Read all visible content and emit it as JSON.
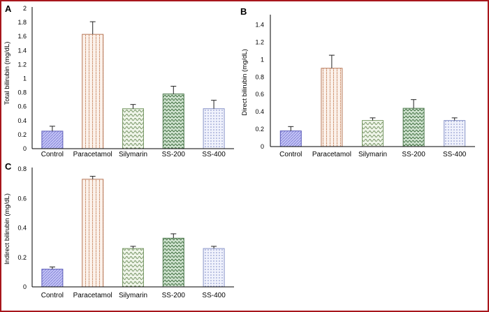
{
  "chart_data": [
    {
      "panel": "A",
      "type": "bar",
      "ylabel": "Total bilirubin (mg/dL)",
      "categories": [
        "Control",
        "Paracetamol",
        "Silymarin",
        "SS-200",
        "SS-400"
      ],
      "values": [
        0.25,
        1.63,
        0.57,
        0.78,
        0.57
      ],
      "errors": [
        0.07,
        0.18,
        0.06,
        0.11,
        0.12
      ],
      "yticks": [
        "0",
        "0.2",
        "0.4",
        "0.6",
        "0.8",
        "1",
        "1.2",
        "1.4",
        "1.6",
        "1.8",
        "2"
      ],
      "ylim": [
        0,
        2
      ]
    },
    {
      "panel": "B",
      "type": "bar",
      "ylabel": "Direct bilirubin (mg/dL)",
      "categories": [
        "Control",
        "Paracetamol",
        "Silymarin",
        "SS-200",
        "SS-400"
      ],
      "values": [
        0.18,
        0.9,
        0.3,
        0.44,
        0.3
      ],
      "errors": [
        0.05,
        0.15,
        0.03,
        0.1,
        0.03
      ],
      "yticks": [
        "0",
        "0.2",
        "0.4",
        "0.6",
        "0.8",
        "1",
        "1.2",
        "1.4"
      ],
      "ylim": [
        0,
        1.5
      ]
    },
    {
      "panel": "C",
      "type": "bar",
      "ylabel": "Indirect bilirubin (mg/dL)",
      "categories": [
        "Control",
        "Paracetamol",
        "Silymarin",
        "SS-200",
        "SS-400"
      ],
      "values": [
        0.12,
        0.73,
        0.26,
        0.33,
        0.26
      ],
      "errors": [
        0.015,
        0.02,
        0.015,
        0.03,
        0.015
      ],
      "yticks": [
        "0",
        "0.2",
        "0.4",
        "0.6",
        "0.8"
      ],
      "ylim": [
        0,
        0.8
      ]
    }
  ],
  "series_fills": [
    "#b8b8f2",
    "#f4e2d8",
    "#e4eedc",
    "#b8d4b8",
    "#e4e8f8"
  ],
  "series_strokes": [
    "#5a5ab8",
    "#b87858",
    "#7a9a68",
    "#4e7a4e",
    "#8894c8"
  ]
}
